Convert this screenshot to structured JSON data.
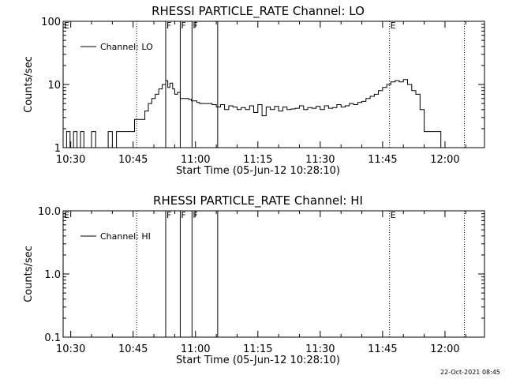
{
  "chart_data": [
    {
      "type": "line",
      "title": "RHESSI PARTICLE_RATE Channel: LO",
      "xlabel": "Start Time (05-Jun-12 10:28:10)",
      "ylabel": "Counts/sec",
      "yscale": "log",
      "ylim": [
        1,
        100
      ],
      "xlim": [
        "10:28:10",
        "12:09:30"
      ],
      "yticks": [
        "1",
        "10",
        "100"
      ],
      "xticks": [
        "10:30",
        "10:45",
        "11:00",
        "11:15",
        "11:30",
        "11:45",
        "12:00"
      ],
      "legend": {
        "placement": "top-left",
        "entries": [
          "Channel: LO"
        ]
      },
      "series": [
        {
          "name": "Channel: LO",
          "x": [
            "10:28:10",
            "10:29:00",
            "10:29:50",
            "10:30:40",
            "10:31:30",
            "10:32:20",
            "10:33:10",
            "10:34:00",
            "10:35:00",
            "10:36:00",
            "10:37:00",
            "10:38:00",
            "10:39:00",
            "10:40:00",
            "10:41:00",
            "10:42:00",
            "10:42:50",
            "10:43:40",
            "10:44:30",
            "10:45:20",
            "10:46:10",
            "10:47:00",
            "10:47:50",
            "10:48:40",
            "10:49:30",
            "10:50:20",
            "10:51:10",
            "10:52:00",
            "10:52:50",
            "10:53:20",
            "10:53:50",
            "10:54:30",
            "10:55:00",
            "10:55:40",
            "10:56:20",
            "10:57:00",
            "10:57:40",
            "10:58:20",
            "10:59:00",
            "10:59:40",
            "11:00:20",
            "11:01:00",
            "11:02:00",
            "11:03:00",
            "11:04:00",
            "11:05:00",
            "11:06:00",
            "11:07:00",
            "11:08:00",
            "11:09:00",
            "11:10:00",
            "11:11:00",
            "11:12:00",
            "11:13:00",
            "11:14:00",
            "11:15:00",
            "11:16:00",
            "11:17:00",
            "11:18:00",
            "11:19:00",
            "11:20:00",
            "11:21:00",
            "11:22:00",
            "11:23:00",
            "11:24:00",
            "11:25:00",
            "11:26:00",
            "11:27:00",
            "11:28:00",
            "11:29:00",
            "11:30:00",
            "11:31:00",
            "11:32:00",
            "11:33:00",
            "11:34:00",
            "11:35:00",
            "11:36:00",
            "11:37:00",
            "11:38:00",
            "11:39:00",
            "11:40:00",
            "11:41:00",
            "11:42:00",
            "11:43:00",
            "11:44:00",
            "11:45:00",
            "11:46:00",
            "11:47:00",
            "11:48:00",
            "11:49:00",
            "11:50:00",
            "11:51:00",
            "11:52:00",
            "11:53:00",
            "11:54:00",
            "11:55:00",
            "11:56:00",
            "11:57:00",
            "11:58:00",
            "11:59:00"
          ],
          "y": [
            1,
            1.8,
            1,
            1.8,
            1,
            1.8,
            1,
            1,
            1.8,
            1,
            1,
            1,
            1.8,
            1,
            1.8,
            1.8,
            1.8,
            1.8,
            1.8,
            2.8,
            2.8,
            2.8,
            3.8,
            5,
            6,
            7,
            8.5,
            10,
            11.5,
            9,
            10.5,
            8.5,
            7,
            7.5,
            6,
            6,
            6,
            5.8,
            5.5,
            5.5,
            5.2,
            5,
            5,
            5,
            4.8,
            4.4,
            4.8,
            4,
            4.6,
            4.4,
            4,
            4.3,
            4,
            4.6,
            3.6,
            4.8,
            3.2,
            4.4,
            4,
            4.5,
            3.8,
            4.4,
            4,
            4.1,
            4.2,
            4.6,
            4,
            4.3,
            4.2,
            4.5,
            4,
            4.6,
            4.2,
            4.3,
            4.8,
            4.4,
            4.6,
            5,
            4.8,
            5.2,
            5.4,
            6,
            6.5,
            7,
            8,
            9,
            10,
            11,
            11.5,
            11,
            12,
            10,
            8,
            7,
            4,
            1.8,
            1.8,
            1.8,
            1.8,
            1
          ]
        }
      ],
      "flags": [
        {
          "label": "E",
          "time": "10:28:10",
          "style": "dotted"
        },
        {
          "label": "",
          "time": "10:45:50",
          "style": "dotted"
        },
        {
          "label": "F",
          "time": "10:52:50",
          "style": "solid"
        },
        {
          "label": "F",
          "time": "10:56:20",
          "style": "solid"
        },
        {
          "label": "F",
          "time": "10:59:10",
          "style": "solid"
        },
        {
          "label": "",
          "time": "11:05:20",
          "style": "solid"
        },
        {
          "label": "E",
          "time": "11:46:40",
          "style": "dotted"
        },
        {
          "label": "",
          "time": "12:04:40",
          "style": "dotted"
        }
      ]
    },
    {
      "type": "line",
      "title": "RHESSI PARTICLE_RATE Channel: HI",
      "xlabel": "Start Time (05-Jun-12 10:28:10)",
      "ylabel": "Counts/sec",
      "yscale": "log",
      "ylim": [
        0.1,
        10
      ],
      "xlim": [
        "10:28:10",
        "12:09:30"
      ],
      "yticks": [
        "0.1",
        "1.0",
        "10.0"
      ],
      "xticks": [
        "10:30",
        "10:45",
        "11:00",
        "11:15",
        "11:30",
        "11:45",
        "12:00"
      ],
      "legend": {
        "placement": "top-left",
        "entries": [
          "Channel: HI"
        ]
      },
      "series": [
        {
          "name": "Channel: HI",
          "x": [],
          "y": []
        }
      ],
      "flags": [
        {
          "label": "E",
          "time": "10:28:10",
          "style": "dotted"
        },
        {
          "label": "",
          "time": "10:45:50",
          "style": "dotted"
        },
        {
          "label": "F",
          "time": "10:52:50",
          "style": "solid"
        },
        {
          "label": "F",
          "time": "10:56:20",
          "style": "solid"
        },
        {
          "label": "F",
          "time": "10:59:10",
          "style": "solid"
        },
        {
          "label": "",
          "time": "11:05:20",
          "style": "solid"
        },
        {
          "label": "E",
          "time": "11:46:40",
          "style": "dotted"
        },
        {
          "label": "",
          "time": "12:04:40",
          "style": "dotted"
        }
      ]
    }
  ],
  "footer": {
    "timestamp": "22-Oct-2021 08:45"
  }
}
